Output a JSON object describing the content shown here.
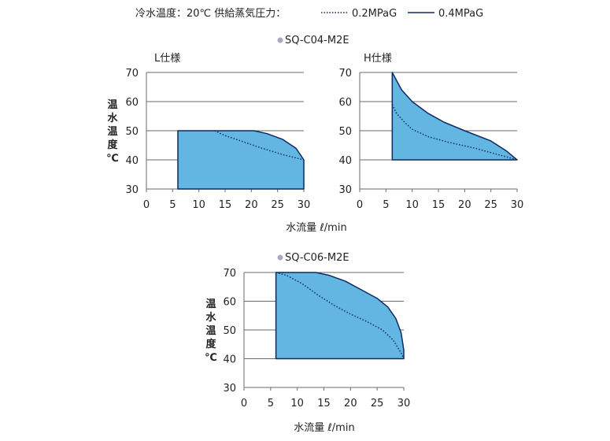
{
  "legend": {
    "condition": "冷水温度：20℃ 供給蒸気圧力：",
    "dotted_label": "0.2MPaG",
    "solid_label": "0.4MPaG",
    "placement": "top"
  },
  "colors": {
    "fill": "#62b6e1",
    "line": "#0d2a63",
    "grid": "#6b6b6b",
    "bullet": "#a8a8c4"
  },
  "units": {
    "xlabel": "水流量 ℓ/min",
    "ylabel": "温水温度 ℃"
  },
  "chart_data": [
    {
      "type": "area",
      "model": "SQ-C04-M2E",
      "title": "L仕様",
      "xlabel": "水流量 ℓ/min",
      "ylabel": "温水温度 ℃",
      "xlim": [
        0,
        30
      ],
      "ylim": [
        30,
        70
      ],
      "xticks": [
        "0",
        "5",
        "10",
        "15",
        "20",
        "25",
        "30"
      ],
      "yticks": [
        "30",
        "40",
        "50",
        "60",
        "70"
      ],
      "grid": true,
      "series": [
        {
          "name": "0.4MPaG",
          "style": "solid",
          "x": [
            6,
            6,
            20.5,
            23,
            26,
            28.5,
            30,
            30
          ],
          "y": [
            30,
            50,
            50,
            49,
            47,
            44,
            40,
            30
          ]
        },
        {
          "name": "0.2MPaG",
          "style": "dotted",
          "x": [
            13,
            15,
            18,
            22,
            26,
            30
          ],
          "y": [
            50,
            48.3,
            46.5,
            44,
            41.8,
            40
          ]
        }
      ]
    },
    {
      "type": "area",
      "model": "",
      "title": "H仕様",
      "xlabel": "水流量 ℓ/min",
      "ylabel": "",
      "xlim": [
        0,
        30
      ],
      "ylim": [
        30,
        70
      ],
      "xticks": [
        "0",
        "5",
        "10",
        "15",
        "20",
        "25",
        "30"
      ],
      "yticks": [
        "30",
        "40",
        "50",
        "60",
        "70"
      ],
      "grid": true,
      "series": [
        {
          "name": "0.4MPaG",
          "style": "solid",
          "x": [
            6.2,
            6.2,
            8,
            10,
            13,
            16,
            20,
            25,
            28,
            30,
            30
          ],
          "y": [
            40,
            70,
            64,
            60,
            56,
            53,
            50,
            46.5,
            43,
            40,
            40
          ]
        },
        {
          "name": "0.2MPaG",
          "style": "dotted",
          "x": [
            6.2,
            7,
            8.5,
            10,
            13,
            17,
            22,
            27,
            30
          ],
          "y": [
            59,
            56,
            53,
            50.5,
            48,
            46,
            44,
            41.5,
            40
          ]
        }
      ]
    },
    {
      "type": "area",
      "model": "SQ-C06-M2E",
      "title": "",
      "xlabel": "水流量 ℓ/min",
      "ylabel": "温水温度 ℃",
      "xlim": [
        0,
        30
      ],
      "ylim": [
        30,
        70
      ],
      "xticks": [
        "0",
        "5",
        "10",
        "15",
        "20",
        "25",
        "30"
      ],
      "yticks": [
        "30",
        "40",
        "50",
        "60",
        "70"
      ],
      "grid": true,
      "series": [
        {
          "name": "0.4MPaG",
          "style": "solid",
          "x": [
            6,
            6,
            13.5,
            16,
            19,
            22,
            25,
            27,
            28.5,
            29.5,
            30,
            30
          ],
          "y": [
            40,
            70,
            70,
            69,
            67,
            64,
            61,
            58,
            54,
            49,
            43,
            40
          ]
        },
        {
          "name": "0.2MPaG",
          "style": "dotted",
          "x": [
            6,
            8,
            11,
            14,
            17,
            20,
            23,
            26,
            28,
            29.5,
            30
          ],
          "y": [
            70,
            69,
            66,
            62,
            58.5,
            55.5,
            53,
            50,
            46.5,
            42,
            40
          ]
        }
      ]
    }
  ]
}
